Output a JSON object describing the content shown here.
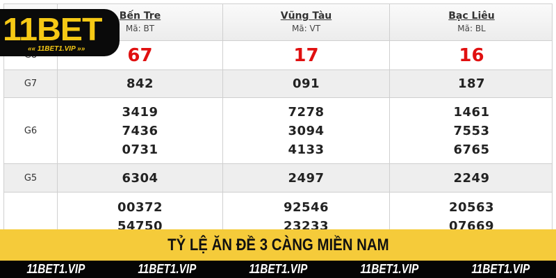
{
  "provinces": [
    {
      "name": "Bến Tre",
      "code": "Mã: BT"
    },
    {
      "name": "Vũng Tàu",
      "code": "Mã: VT"
    },
    {
      "name": "Bạc Liêu",
      "code": "Mã: BL"
    }
  ],
  "rows": [
    {
      "label": "G8",
      "values": [
        [
          "67"
        ],
        [
          "17"
        ],
        [
          "16"
        ]
      ]
    },
    {
      "label": "G7",
      "values": [
        [
          "842"
        ],
        [
          "091"
        ],
        [
          "187"
        ]
      ]
    },
    {
      "label": "G6",
      "values": [
        [
          "3419",
          "7436",
          "0731"
        ],
        [
          "7278",
          "3094",
          "4133"
        ],
        [
          "1461",
          "7553",
          "6765"
        ]
      ]
    },
    {
      "label": "G5",
      "values": [
        [
          "6304"
        ],
        [
          "2497"
        ],
        [
          "2249"
        ]
      ]
    },
    {
      "label": "",
      "values": [
        [
          "00372",
          "54750"
        ],
        [
          "92546",
          "23233"
        ],
        [
          "20563",
          "07669"
        ]
      ]
    }
  ],
  "logo": {
    "main": "11BET",
    "sub": "«« 11BET1.VIP »»"
  },
  "banner": {
    "title": "TỶ LỆ ĂN ĐỀ 3 CÀNG MIỀN NAM"
  },
  "watermark": [
    "11BET1.VIP",
    "11BET1.VIP",
    "11BET1.VIP",
    "11BET1.VIP",
    "11BET1.VIP"
  ],
  "colors": {
    "accent": "#f5cb3a",
    "prize_red": "#e01010"
  }
}
